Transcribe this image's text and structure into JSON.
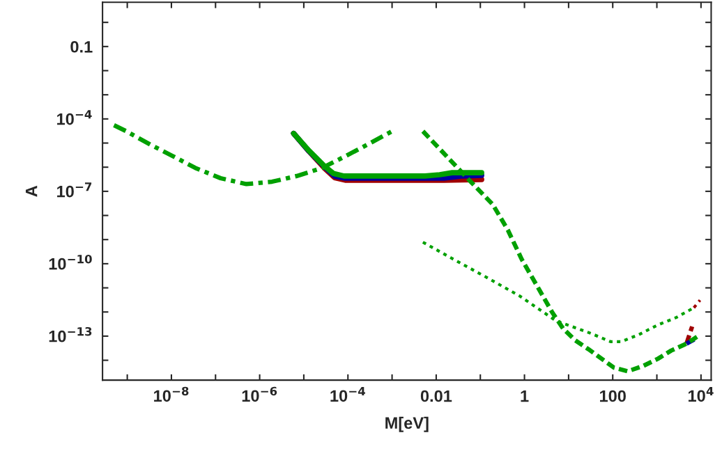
{
  "chart_data": {
    "type": "line",
    "xlabel": "M[eV]",
    "ylabel": "A",
    "log": "xy",
    "grid": false,
    "legend": false,
    "marker": "none",
    "xlim": [
      2.75e-10,
      17000
    ],
    "ylim": [
      1.5e-15,
      6.8
    ],
    "xticks": [
      {
        "value": 1e-09,
        "label": null
      },
      {
        "value": 1e-08,
        "label": "10$^{−8}$"
      },
      {
        "value": 1e-07,
        "label": null
      },
      {
        "value": 1e-06,
        "label": "10$^{−6}$"
      },
      {
        "value": 1e-05,
        "label": null
      },
      {
        "value": 0.0001,
        "label": "10$^{−4}$"
      },
      {
        "value": 0.001,
        "label": null
      },
      0.01,
      {
        "value": 0.1,
        "label": null
      },
      1,
      {
        "value": 10,
        "label": null
      },
      100,
      {
        "value": 1000,
        "label": null
      },
      {
        "value": 10000,
        "label": "10$^{4}$"
      }
    ],
    "yticks": [
      {
        "value": 1e-14,
        "label": null
      },
      {
        "value": 1e-13,
        "label": "10$^{−13}$"
      },
      {
        "value": 1e-12,
        "label": null
      },
      {
        "value": 1e-11,
        "label": null
      },
      {
        "value": 1e-10,
        "label": "10$^{−10}$"
      },
      {
        "value": 1e-09,
        "label": null
      },
      {
        "value": 1e-08,
        "label": null
      },
      {
        "value": 1e-07,
        "label": "10$^{−7}$"
      },
      {
        "value": 1e-06,
        "label": null
      },
      {
        "value": 1e-05,
        "label": null
      },
      {
        "value": 0.0001,
        "label": "10$^{−4}$"
      },
      {
        "value": 0.001,
        "label": null
      },
      {
        "value": 0.01,
        "label": null
      },
      0.1,
      {
        "value": 1,
        "label": null
      }
    ],
    "series": [
      {
        "color": "#a00000",
        "line_style": "solid",
        "x": [
          5.9e-06,
          1.3e-05,
          3e-05,
          5e-05,
          8.7e-05,
          0.015,
          0.107
        ],
        "values": [
          2.5e-05,
          4.6e-06,
          8.7e-07,
          3.7e-07,
          2.9e-07,
          2.9e-07,
          3.1e-07
        ]
      },
      {
        "color": "#0000a0",
        "line_style": "solid",
        "x": [
          5.9e-06,
          1.3e-05,
          3e-05,
          5e-05,
          8.7e-05,
          0.015,
          0.036,
          0.107
        ],
        "values": [
          2.5e-05,
          4.7e-06,
          1e-06,
          4.3e-07,
          3.5e-07,
          3.5e-07,
          4.3e-07,
          4.6e-07
        ]
      },
      {
        "color": "#00a000",
        "line_style": "solid",
        "x": [
          5.9e-06,
          1.3e-05,
          3e-05,
          4.7e-05,
          8.1e-05,
          0.0056,
          0.012,
          0.023,
          0.107
        ],
        "values": [
          2.5e-05,
          4.9e-06,
          1.07e-06,
          5.5e-07,
          4.3e-07,
          4.3e-07,
          4.9e-07,
          5.9e-07,
          5.9e-07
        ]
      },
      {
        "color": "#a00000",
        "line_style": "dashed",
        "x": [
          4700,
          6300
        ],
        "values": [
          4.9e-14,
          2.5e-13
        ]
      },
      {
        "color": "#0000a0",
        "line_style": "dashed",
        "x": [
          4700,
          7600
        ],
        "values": [
          4.9e-14,
          7.8e-14
        ]
      },
      {
        "color": "#00a000",
        "line_style": "dashed",
        "x": [
          0.005,
          0.017,
          0.056,
          0.19,
          0.42,
          0.87,
          2.0,
          4.3,
          7.6,
          14,
          28,
          107,
          220,
          500,
          1050,
          2100,
          4700,
          8100
        ],
        "values": [
          3.1e-05,
          2.9e-06,
          2.9e-07,
          2.9e-08,
          2.5e-09,
          1.5e-10,
          1.07e-11,
          9.3e-13,
          2e-13,
          6.8e-14,
          2.9e-14,
          4.9e-15,
          3.5e-15,
          5.9e-15,
          1.15e-14,
          2.5e-14,
          4.9e-14,
          9.3e-14
        ]
      },
      {
        "color": "#00a000",
        "line_style": "dashdot",
        "x": [
          5e-10,
          9.5e-10,
          3.3e-09,
          1.07e-08,
          3.5e-08,
          1.3e-07,
          5e-07,
          1.9e-06,
          6.9e-06,
          2.6e-05,
          8.9e-05,
          0.0003,
          0.001
        ],
        "values": [
          5.5e-05,
          3.1e-05,
          8.7e-06,
          2.9e-06,
          9.3e-07,
          3.5e-07,
          2e-07,
          2.5e-07,
          4.3e-07,
          9.3e-07,
          2.9e-06,
          9.3e-06,
          3.1e-05
        ]
      },
      {
        "color": "#a00000",
        "line_style": "dotted",
        "x": [
          6900,
          9500
        ],
        "values": [
          1.5e-12,
          3.1e-12
        ]
      },
      {
        "color": "#00a000",
        "line_style": "dotted",
        "x": [
          0.005,
          0.021,
          0.13,
          0.78,
          5.2,
          32,
          89,
          155,
          390,
          1050,
          2750,
          6900
        ],
        "values": [
          7.8e-10,
          1.8e-10,
          2.9e-11,
          4.6e-12,
          4.3e-13,
          1.3e-13,
          5.9e-14,
          5.9e-14,
          1.15e-13,
          2.9e-13,
          5.9e-13,
          1.5e-12
        ]
      }
    ]
  }
}
